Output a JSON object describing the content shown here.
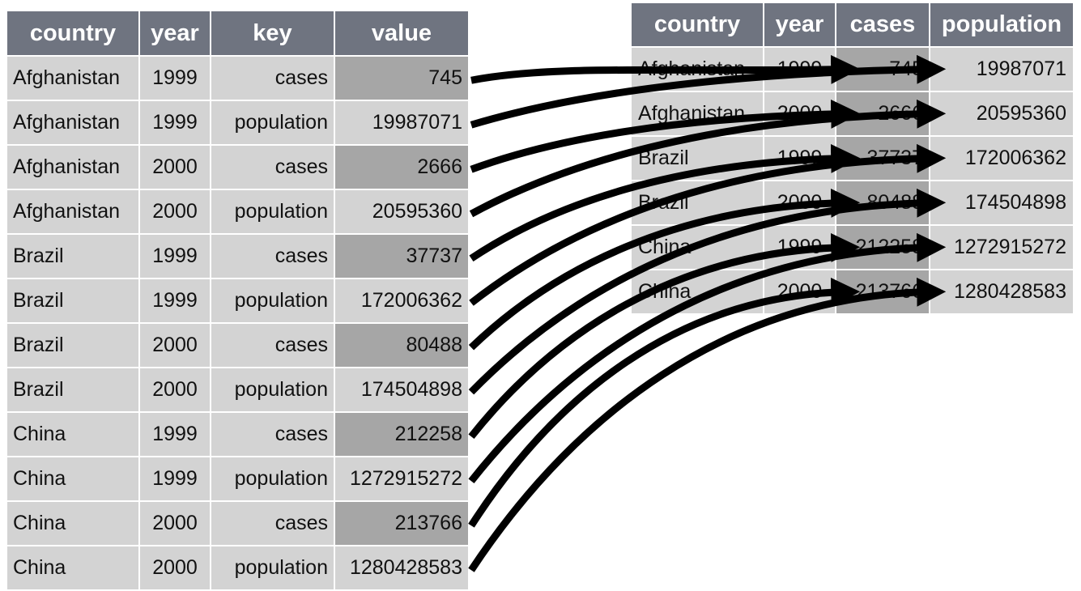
{
  "long_table": {
    "headers": [
      "country",
      "year",
      "key",
      "value"
    ],
    "rows": [
      {
        "country": "Afghanistan",
        "year": "1999",
        "key": "cases",
        "value": "745"
      },
      {
        "country": "Afghanistan",
        "year": "1999",
        "key": "population",
        "value": "19987071"
      },
      {
        "country": "Afghanistan",
        "year": "2000",
        "key": "cases",
        "value": "2666"
      },
      {
        "country": "Afghanistan",
        "year": "2000",
        "key": "population",
        "value": "20595360"
      },
      {
        "country": "Brazil",
        "year": "1999",
        "key": "cases",
        "value": "37737"
      },
      {
        "country": "Brazil",
        "year": "1999",
        "key": "population",
        "value": "172006362"
      },
      {
        "country": "Brazil",
        "year": "2000",
        "key": "cases",
        "value": "80488"
      },
      {
        "country": "Brazil",
        "year": "2000",
        "key": "population",
        "value": "174504898"
      },
      {
        "country": "China",
        "year": "1999",
        "key": "cases",
        "value": "212258"
      },
      {
        "country": "China",
        "year": "1999",
        "key": "population",
        "value": "1272915272"
      },
      {
        "country": "China",
        "year": "2000",
        "key": "cases",
        "value": "213766"
      },
      {
        "country": "China",
        "year": "2000",
        "key": "population",
        "value": "1280428583"
      }
    ]
  },
  "wide_table": {
    "headers": [
      "country",
      "year",
      "cases",
      "population"
    ],
    "rows": [
      {
        "country": "Afghanistan",
        "year": "1999",
        "cases": "745",
        "population": "19987071"
      },
      {
        "country": "Afghanistan",
        "year": "2000",
        "cases": "2666",
        "population": "20595360"
      },
      {
        "country": "Brazil",
        "year": "1999",
        "cases": "37737",
        "population": "172006362"
      },
      {
        "country": "Brazil",
        "year": "2000",
        "cases": "80488",
        "population": "174504898"
      },
      {
        "country": "China",
        "year": "1999",
        "cases": "212258",
        "population": "1272915272"
      },
      {
        "country": "China",
        "year": "2000",
        "cases": "213766",
        "population": "1280428583"
      }
    ]
  },
  "colors": {
    "header_bg": "#6f7480",
    "cell_bg": "#d3d3d3",
    "highlight_bg": "#a6a6a6",
    "arrow": "#000000"
  }
}
